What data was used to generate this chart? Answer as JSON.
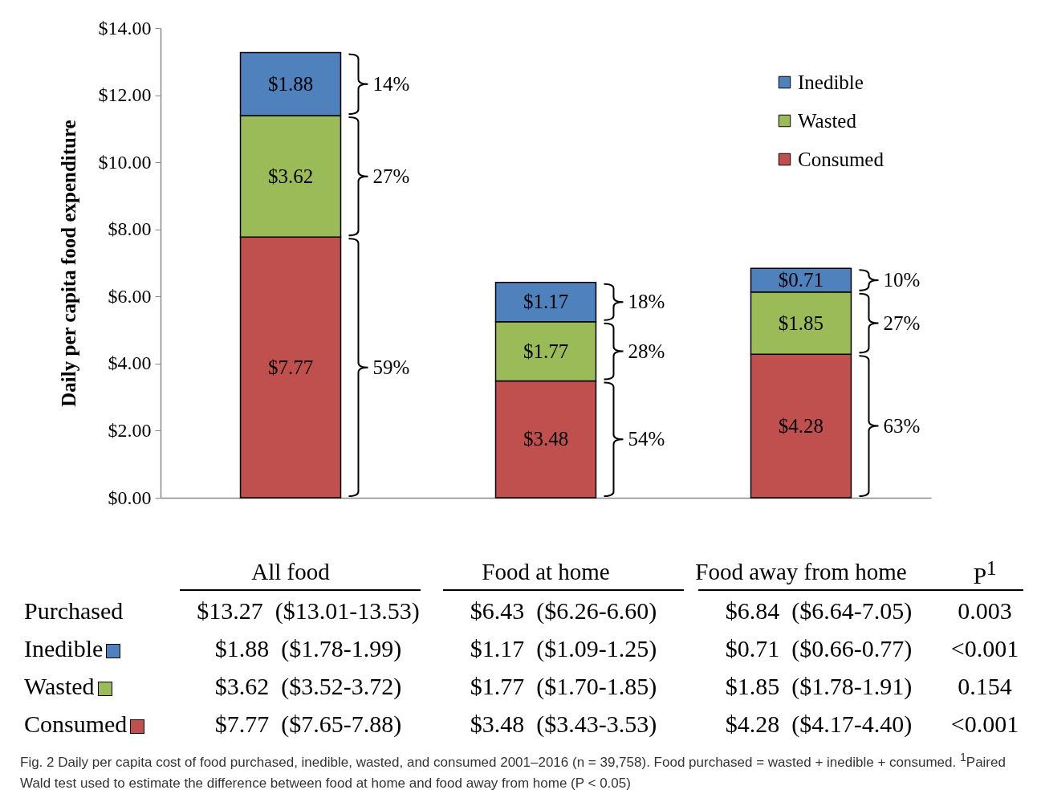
{
  "chart_data": {
    "type": "bar",
    "stacked": true,
    "legend": "top right",
    "ylabel": "Daily per capita food expenditure",
    "categories": [
      "All food",
      "Food at home",
      "Food away from home"
    ],
    "ylim": [
      0,
      14
    ],
    "yticks": [
      {
        "value": 0,
        "label": "$0.00"
      },
      {
        "value": 2,
        "label": "$2.00"
      },
      {
        "value": 4,
        "label": "$4.00"
      },
      {
        "value": 6,
        "label": "$6.00"
      },
      {
        "value": 8,
        "label": "$8.00"
      },
      {
        "value": 10,
        "label": "$10.00"
      },
      {
        "value": 12,
        "label": "$12.00"
      },
      {
        "value": 14,
        "label": "$14.00"
      }
    ],
    "series": [
      {
        "name": "Consumed",
        "color": "#c0504d",
        "values": [
          7.77,
          3.48,
          4.28
        ],
        "value_labels": [
          "$7.77",
          "$3.48",
          "$4.28"
        ]
      },
      {
        "name": "Wasted",
        "color": "#9bbb59",
        "values": [
          3.62,
          1.77,
          1.85
        ],
        "value_labels": [
          "$3.62",
          "$1.77",
          "$1.85"
        ]
      },
      {
        "name": "Inedible",
        "color": "#4f81bd",
        "values": [
          1.88,
          1.17,
          0.71
        ],
        "value_labels": [
          "$1.88",
          "$1.17",
          "$0.71"
        ]
      }
    ],
    "annotations": [
      "59%",
      "54%",
      "63%",
      "27%",
      "28%",
      "27%",
      "14%",
      "18%",
      "10%",
      "P$^{1}$",
      "Purchased",
      "$13.27  ($13.01-13.53)",
      "$6.43  ($6.26-6.60)",
      "$6.84  ($6.64-7.05)",
      "0.003",
      "Inedible",
      "$1.88  ($1.78-1.99)",
      "$1.17  ($1.09-1.25)",
      "$0.71  ($0.66-0.77)",
      "<0.001",
      "Wasted",
      "$3.62  ($3.52-3.72)",
      "$1.77  ($1.70-1.85)",
      "$1.85  ($1.78-1.91)",
      "0.154",
      "Consumed",
      "$7.77  ($7.65-7.88)",
      "$3.48  ($3.43-3.53)",
      "$4.28  ($4.17-4.40)",
      "<0.001",
      "Fig. 2 Daily per capita cost of food purchased, inedible, wasted, and consumed 2001–2016 (n = 39,758). Food purchased = wasted + inedible + consumed. $^{1}$Paired Wald test used to estimate the difference between food at home and food away from home (P < 0.05)"
    ]
  }
}
